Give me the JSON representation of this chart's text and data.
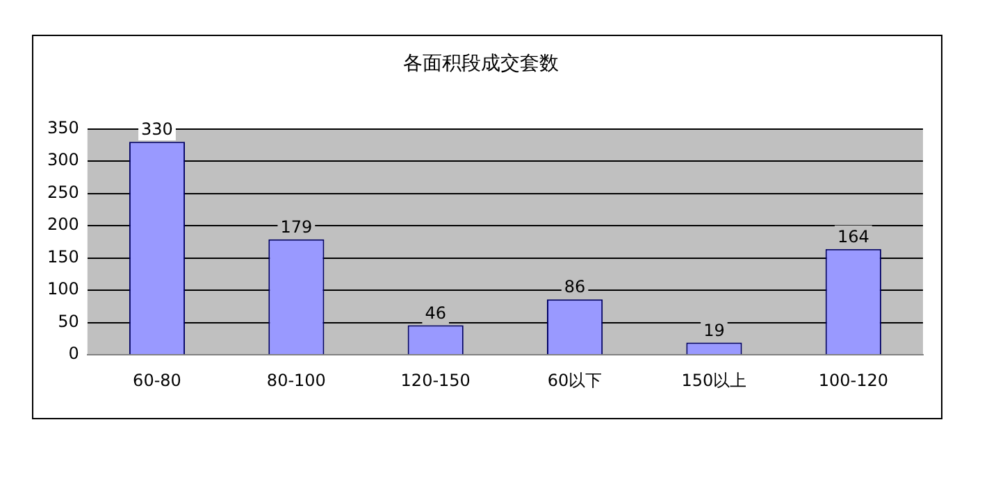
{
  "chart_data": {
    "type": "bar",
    "title": "各面积段成交套数",
    "categories": [
      "60-80",
      "80-100",
      "120-150",
      "60以下",
      "150以上",
      "100-120"
    ],
    "values": [
      330,
      179,
      46,
      86,
      19,
      164
    ],
    "color": "#9999ff",
    "ylim": [
      0,
      350
    ],
    "yticks": [
      0,
      50,
      100,
      150,
      200,
      250,
      300,
      350
    ],
    "grid": "y",
    "data_labels": true,
    "legend": false
  }
}
